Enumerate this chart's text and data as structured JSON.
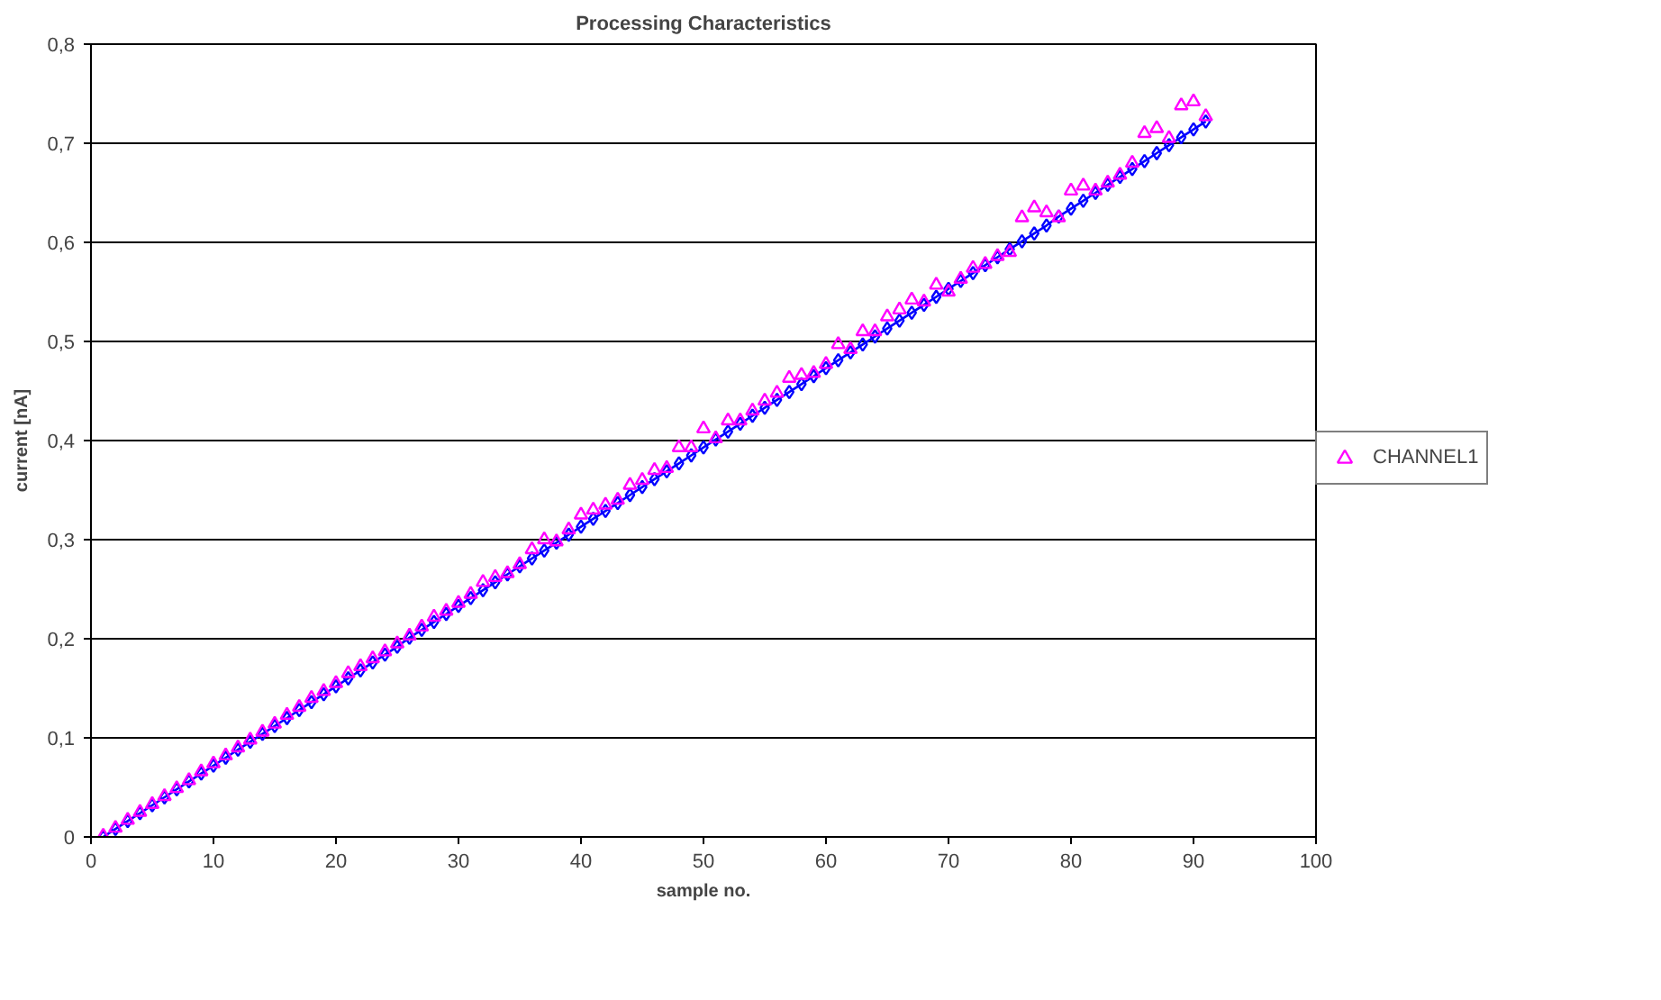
{
  "chart_data": {
    "type": "line",
    "title": "Processing Characteristics",
    "xlabel": "sample no.",
    "ylabel": "current [nA]",
    "x": [
      1,
      2,
      3,
      4,
      5,
      6,
      7,
      8,
      9,
      10,
      11,
      12,
      13,
      14,
      15,
      16,
      17,
      18,
      19,
      20,
      21,
      22,
      23,
      24,
      25,
      26,
      27,
      28,
      29,
      30,
      31,
      32,
      33,
      34,
      35,
      36,
      37,
      38,
      39,
      40,
      41,
      42,
      43,
      44,
      45,
      46,
      47,
      48,
      49,
      50,
      51,
      52,
      53,
      54,
      55,
      56,
      57,
      58,
      59,
      60,
      61,
      62,
      63,
      64,
      65,
      66,
      67,
      68,
      69,
      70,
      71,
      72,
      73,
      74,
      75,
      76,
      77,
      78,
      79,
      80,
      81,
      82,
      83,
      84,
      85,
      86,
      87,
      88,
      89,
      90,
      91
    ],
    "series": [
      {
        "marker": "diamond",
        "color": "#0000ff",
        "values": [
          0,
          0.008,
          0.016,
          0.024,
          0.032,
          0.04,
          0.048,
          0.056,
          0.064,
          0.072,
          0.08,
          0.088,
          0.096,
          0.104,
          0.112,
          0.12,
          0.128,
          0.136,
          0.144,
          0.152,
          0.16,
          0.168,
          0.176,
          0.184,
          0.192,
          0.201,
          0.209,
          0.217,
          0.225,
          0.233,
          0.241,
          0.249,
          0.257,
          0.265,
          0.273,
          0.281,
          0.289,
          0.297,
          0.305,
          0.313,
          0.321,
          0.329,
          0.337,
          0.345,
          0.353,
          0.361,
          0.369,
          0.377,
          0.385,
          0.393,
          0.401,
          0.409,
          0.417,
          0.425,
          0.433,
          0.441,
          0.449,
          0.457,
          0.465,
          0.473,
          0.481,
          0.489,
          0.497,
          0.505,
          0.513,
          0.521,
          0.529,
          0.537,
          0.545,
          0.553,
          0.561,
          0.569,
          0.577,
          0.585,
          0.593,
          0.601,
          0.609,
          0.617,
          0.626,
          0.634,
          0.642,
          0.65,
          0.658,
          0.666,
          0.674,
          0.682,
          0.69,
          0.698,
          0.706,
          0.714,
          0.722
        ]
      },
      {
        "type": "scatter",
        "marker": "triangle",
        "name": "CHANNEL1",
        "color": "#ff00ff",
        "values": [
          0.001,
          0.009,
          0.017,
          0.025,
          0.033,
          0.041,
          0.049,
          0.057,
          0.066,
          0.074,
          0.082,
          0.09,
          0.098,
          0.106,
          0.114,
          0.123,
          0.131,
          0.14,
          0.147,
          0.155,
          0.165,
          0.172,
          0.18,
          0.187,
          0.195,
          0.203,
          0.212,
          0.222,
          0.228,
          0.236,
          0.245,
          0.257,
          0.262,
          0.266,
          0.275,
          0.29,
          0.3,
          0.298,
          0.31,
          0.325,
          0.33,
          0.335,
          0.34,
          0.355,
          0.36,
          0.37,
          0.372,
          0.393,
          0.393,
          0.412,
          0.402,
          0.42,
          0.42,
          0.43,
          0.44,
          0.448,
          0.463,
          0.466,
          0.468,
          0.477,
          0.497,
          0.492,
          0.51,
          0.51,
          0.525,
          0.532,
          0.542,
          0.54,
          0.557,
          0.55,
          0.563,
          0.574,
          0.578,
          0.586,
          0.59,
          0.625,
          0.635,
          0.63,
          0.625,
          0.652,
          0.657,
          0.652,
          0.66,
          0.668,
          0.68,
          0.71,
          0.715,
          0.705,
          0.738,
          0.742,
          0.727
        ]
      }
    ],
    "xlim": [
      0,
      100
    ],
    "xticks": [
      0,
      10,
      20,
      30,
      40,
      50,
      60,
      70,
      80,
      90,
      100
    ],
    "ylim": [
      0,
      0.8
    ],
    "yticks": [
      0,
      {
        "value": 0.1,
        "label": "0,1"
      },
      {
        "value": 0.2,
        "label": "0,2"
      },
      {
        "value": 0.3,
        "label": "0,3"
      },
      {
        "value": 0.4,
        "label": "0,4"
      },
      {
        "value": 0.5,
        "label": "0,5"
      },
      {
        "value": 0.6,
        "label": "0,6"
      },
      {
        "value": 0.7,
        "label": "0,7"
      },
      {
        "value": 0.8,
        "label": "0,8"
      }
    ],
    "grid": "y",
    "legend": "right"
  }
}
